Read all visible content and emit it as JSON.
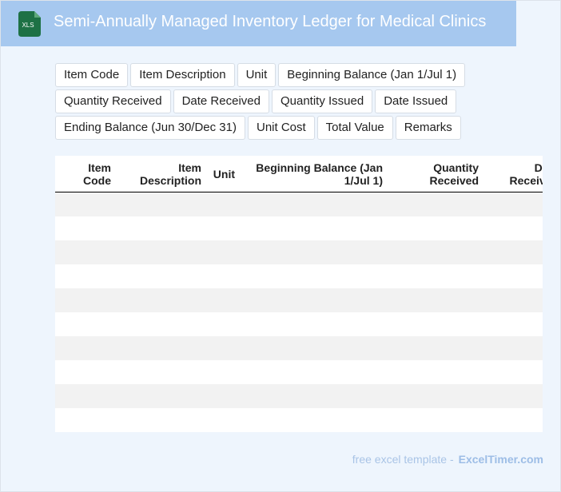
{
  "header": {
    "icon_label": "XLS",
    "title": "Semi-Annually Managed Inventory Ledger for Medical Clinics"
  },
  "fields": [
    "Item Code",
    "Item Description",
    "Unit",
    "Beginning Balance (Jan 1/Jul 1)",
    "Quantity Received",
    "Date Received",
    "Quantity Issued",
    "Date Issued",
    "Ending Balance (Jun 30/Dec 31)",
    "Unit Cost",
    "Total Value",
    "Remarks"
  ],
  "table": {
    "columns": [
      "Item Code",
      "Item Description",
      "Unit",
      "Beginning Balance (Jan 1/Jul 1)",
      "Quantity Received",
      "Date Received"
    ]
  },
  "footer": {
    "text": "free excel template -",
    "link": "ExcelTimer.com"
  }
}
